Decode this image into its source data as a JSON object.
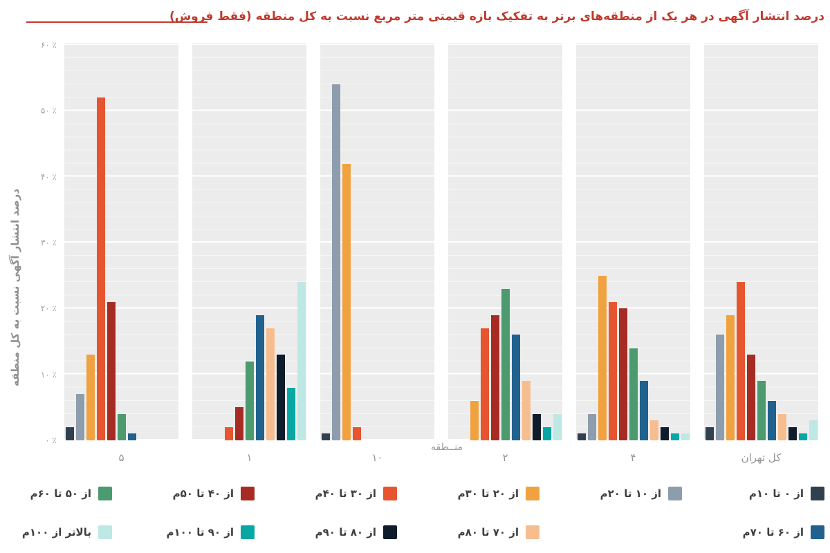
{
  "title": "درصد  انتشار آگهی در هر یک از منطقه‌های برتر به تفکیک بازه قیمتی متر مربع نسبت به کل منطقه (فقط فروش)",
  "colors": {
    "title": "#C0392B",
    "band_background": "#ECECEC",
    "axis_text": "#9a9a9a",
    "tick_text": "#a0a0a0",
    "legend_text": "#3f3f3f"
  },
  "y_axis": {
    "title": "درصد انتشار آگهی نسبت به کل منطقه",
    "ticks": [
      {
        "label": "۶۰ ٪",
        "value": 60
      },
      {
        "label": "۵۰ ٪",
        "value": 50
      },
      {
        "label": "۴۰ ٪",
        "value": 40
      },
      {
        "label": "۳۰ ٪",
        "value": 30
      },
      {
        "label": "۲۰ ٪",
        "value": 20
      },
      {
        "label": "۱۰ ٪",
        "value": 10
      },
      {
        "label": "۰ ٪",
        "value": 0
      }
    ]
  },
  "x_axis": {
    "title": "منــطقه"
  },
  "chart_data": {
    "type": "bar",
    "title": "درصد انتشار آگهی در هر یک از منطقه‌های برتر به تفکیک بازه قیمتی متر مربع نسبت به کل منطقه (فقط فروش)",
    "xlabel": "منــطقه",
    "ylabel": "درصد انتشار آگهی نسبت به کل منطقه",
    "ylim": [
      0,
      60
    ],
    "grid": true,
    "legend_position": "bottom",
    "categories": [
      "۵",
      "۱",
      "۱۰",
      "۲",
      "۴",
      "کل تهران"
    ],
    "series": [
      {
        "name": "از ۰ تا ۱۰م",
        "color": "#31404F",
        "values": [
          2,
          0,
          1,
          0,
          1,
          2
        ]
      },
      {
        "name": "از ۱۰ تا ۲۰م",
        "color": "#8D9DAD",
        "values": [
          7,
          0,
          54,
          0,
          4,
          16
        ]
      },
      {
        "name": "از ۲۰ تا ۳۰م",
        "color": "#F0A240",
        "values": [
          13,
          0,
          42,
          6,
          25,
          19
        ]
      },
      {
        "name": "از ۳۰ تا ۴۰م",
        "color": "#E65530",
        "values": [
          52,
          2,
          2,
          17,
          21,
          24
        ]
      },
      {
        "name": "از ۴۰ تا ۵۰م",
        "color": "#A62B23",
        "values": [
          21,
          5,
          0,
          19,
          20,
          13
        ]
      },
      {
        "name": "از ۵۰ تا ۶۰م",
        "color": "#4C9A6F",
        "values": [
          4,
          12,
          0,
          23,
          14,
          9
        ]
      },
      {
        "name": "از ۶۰ تا ۷۰م",
        "color": "#20618E",
        "values": [
          1,
          19,
          0,
          16,
          9,
          6
        ]
      },
      {
        "name": "از ۷۰ تا ۸۰م",
        "color": "#F6BD8F",
        "values": [
          0,
          17,
          0,
          9,
          3,
          4
        ]
      },
      {
        "name": "از ۸۰ تا ۹۰م",
        "color": "#0E1C2B",
        "values": [
          0,
          13,
          0,
          4,
          2,
          2
        ]
      },
      {
        "name": "از ۹۰ تا ۱۰۰م",
        "color": "#07A7A3",
        "values": [
          0,
          8,
          0,
          2,
          1,
          1
        ]
      },
      {
        "name": "بالاتر از ۱۰۰م",
        "color": "#BEE8E4",
        "values": [
          0,
          24,
          0,
          4,
          1,
          3
        ]
      }
    ]
  },
  "legend": {
    "rows": [
      [
        {
          "series": 0,
          "col": 5
        },
        {
          "series": 1,
          "col": 4
        },
        {
          "series": 2,
          "col": 3
        },
        {
          "series": 3,
          "col": 2
        },
        {
          "series": 4,
          "col": 1
        },
        {
          "series": 5,
          "col": 0
        }
      ],
      [
        {
          "series": 6,
          "col": 5
        },
        {
          "series": 7,
          "col": 3
        },
        {
          "series": 8,
          "col": 2
        },
        {
          "series": 9,
          "col": 1
        },
        {
          "series": 10,
          "col": 0
        }
      ]
    ]
  }
}
